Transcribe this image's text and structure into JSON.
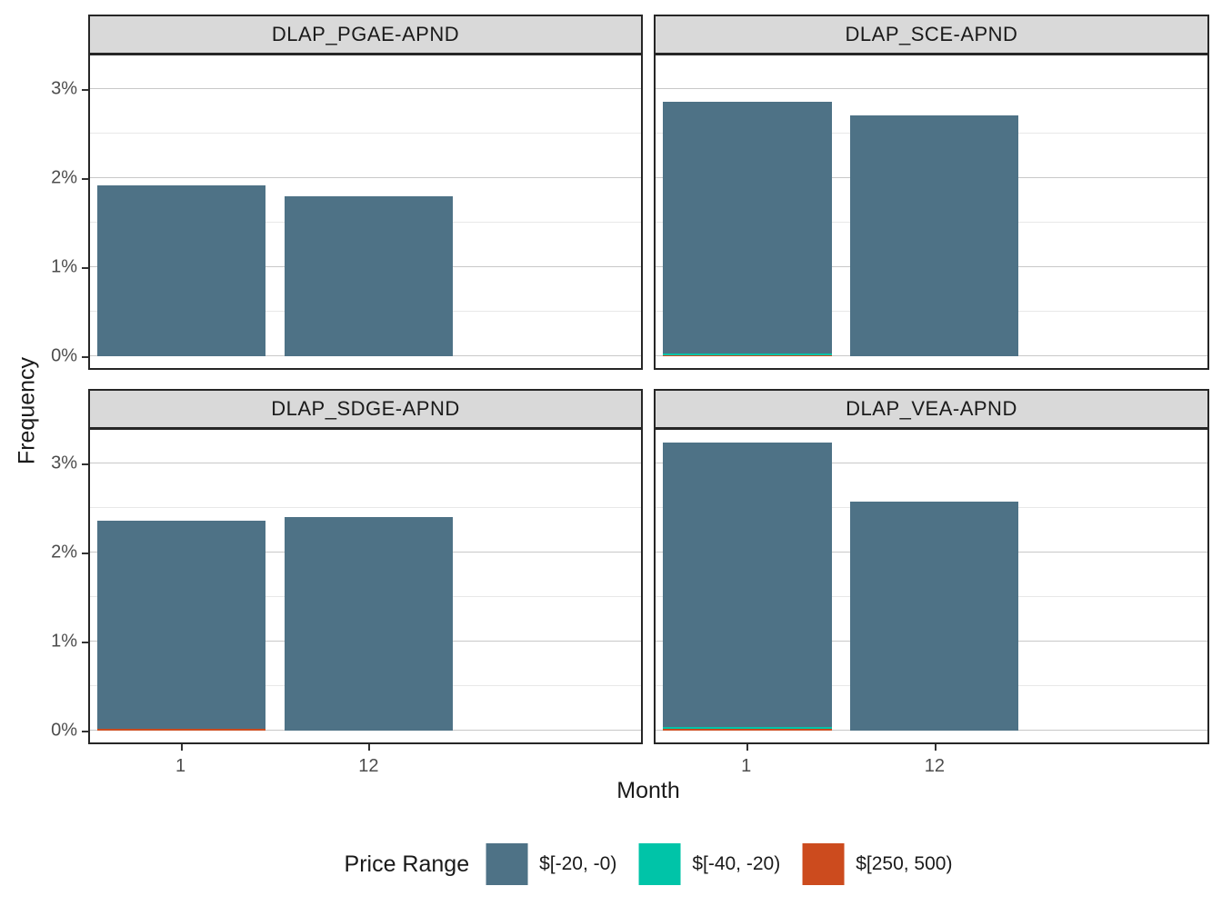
{
  "figure": {
    "y_axis_title": "Frequency",
    "x_axis_title": "Month"
  },
  "legend": {
    "title": "Price Range",
    "items": [
      {
        "label": "$[-20, -0)",
        "color": "#4e7286"
      },
      {
        "label": "$[-40, -20)",
        "color": "#00c4a8"
      },
      {
        "label": "$[250, 500)",
        "color": "#cc4b1e"
      }
    ]
  },
  "chart_data": {
    "type": "bar",
    "stacked": true,
    "faceted": true,
    "title": "",
    "xlabel": "Month",
    "ylabel": "Frequency",
    "categories": [
      "1",
      "12"
    ],
    "y_unit": "percent",
    "ylim_pct": [
      -0.13,
      3.4
    ],
    "y_major_ticks_pct": [
      0,
      1,
      2,
      3
    ],
    "y_major_tick_labels": [
      "0%",
      "1%",
      "2%",
      "3%"
    ],
    "y_minor_ticks_pct": [
      0.5,
      1.5,
      2.5
    ],
    "grid": true,
    "legend_position": "bottom",
    "series_order_bottom_to_top": [
      "$[250, 500)",
      "$[-40, -20)",
      "$[-20, -0)"
    ],
    "series_colors": {
      "$[-20, -0)": "#4e7286",
      "$[-40, -20)": "#00c4a8",
      "$[250, 500)": "#cc4b1e"
    },
    "panels": [
      {
        "title": "DLAP_PGAE-APND",
        "bars": [
          {
            "month": "1",
            "values_pct": {
              "$[250, 500)": 0,
              "$[-40, -20)": 0,
              "$[-20, -0)": 1.92
            },
            "total_pct": 1.92
          },
          {
            "month": "12",
            "values_pct": {
              "$[250, 500)": 0,
              "$[-40, -20)": 0,
              "$[-20, -0)": 1.8
            },
            "total_pct": 1.8
          }
        ]
      },
      {
        "title": "DLAP_SCE-APND",
        "bars": [
          {
            "month": "1",
            "values_pct": {
              "$[250, 500)": 0.01,
              "$[-40, -20)": 0.02,
              "$[-20, -0)": 2.83
            },
            "total_pct": 2.86
          },
          {
            "month": "12",
            "values_pct": {
              "$[250, 500)": 0,
              "$[-40, -20)": 0,
              "$[-20, -0)": 2.7
            },
            "total_pct": 2.7
          }
        ]
      },
      {
        "title": "DLAP_SDGE-APND",
        "bars": [
          {
            "month": "1",
            "values_pct": {
              "$[250, 500)": 0.02,
              "$[-40, -20)": 0,
              "$[-20, -0)": 2.34
            },
            "total_pct": 2.36
          },
          {
            "month": "12",
            "values_pct": {
              "$[250, 500)": 0,
              "$[-40, -20)": 0,
              "$[-20, -0)": 2.4
            },
            "total_pct": 2.4
          }
        ]
      },
      {
        "title": "DLAP_VEA-APND",
        "bars": [
          {
            "month": "1",
            "values_pct": {
              "$[250, 500)": 0.02,
              "$[-40, -20)": 0.02,
              "$[-20, -0)": 3.19
            },
            "total_pct": 3.23
          },
          {
            "month": "12",
            "values_pct": {
              "$[250, 500)": 0,
              "$[-40, -20)": 0,
              "$[-20, -0)": 2.57
            },
            "total_pct": 2.57
          }
        ]
      }
    ]
  }
}
